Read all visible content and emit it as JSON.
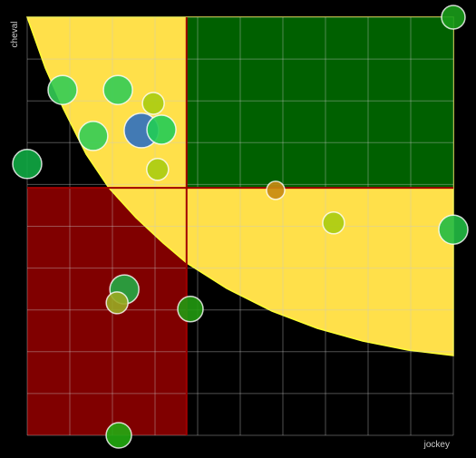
{
  "chart_data": {
    "type": "scatter",
    "x_label": "jockey",
    "y_label": "cheval",
    "xlim": [
      0,
      10
    ],
    "ylim": [
      0,
      10
    ],
    "xticks": [
      0,
      1,
      2,
      3,
      4,
      5,
      6,
      7,
      8,
      9,
      10
    ],
    "yticks": [
      0,
      1,
      2,
      3,
      4,
      5,
      6,
      7,
      8,
      9,
      10
    ],
    "grid": true,
    "thresholds": {
      "x": 3.74,
      "y": 5.92
    },
    "x": [
      10,
      0.83,
      2.13,
      2.96,
      2.68,
      3.15,
      1.55,
      0,
      3.06,
      5.83,
      7.19,
      10,
      2.28,
      2.11,
      3.83,
      2.15
    ],
    "y": [
      10,
      8.26,
      8.26,
      7.94,
      7.29,
      7.31,
      7.16,
      6.49,
      6.36,
      5.86,
      5.08,
      4.92,
      3.49,
      3.17,
      3.02,
      0
    ],
    "sizes": [
      13,
      16,
      16,
      12,
      19,
      16,
      16,
      16,
      12,
      10,
      12,
      16,
      16,
      12,
      14,
      14
    ],
    "colors": [
      "#1a9c1a",
      "#33cc55",
      "#33cc55",
      "#aacc11",
      "#2e6fc0",
      "#22cc55",
      "#33cc55",
      "#11aa44",
      "#aacc11",
      "#c88a11",
      "#aacc11",
      "#22bb44",
      "#22aa44",
      "#99aa22",
      "#229911",
      "#22aa11"
    ]
  }
}
